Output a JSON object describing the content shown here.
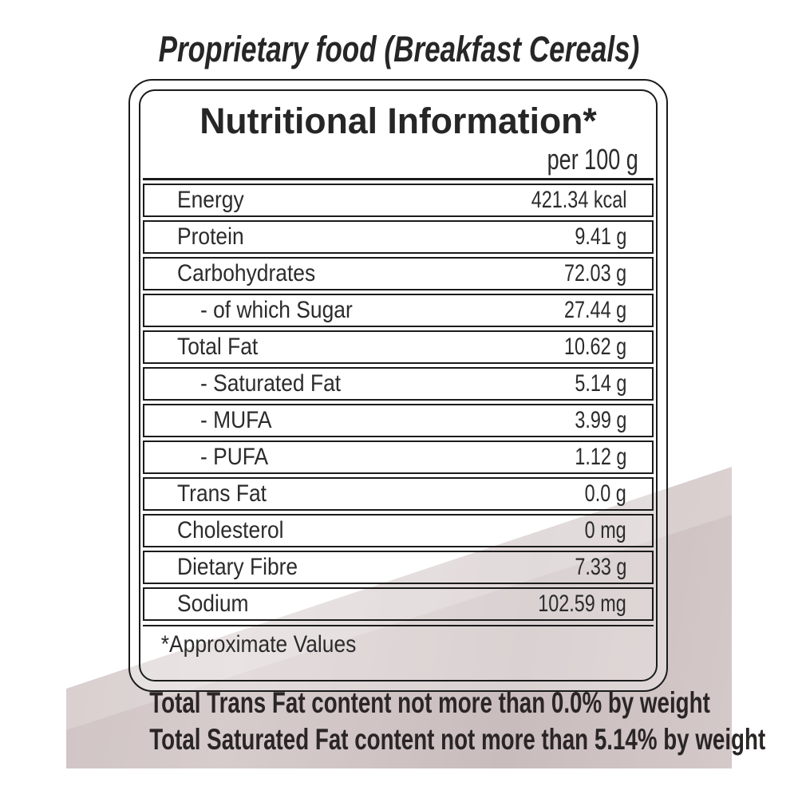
{
  "page": {
    "title": "Proprietary food (Breakfast Cereals)"
  },
  "label_box": {
    "header": "Nutritional Information*",
    "per_quantity": "per 100 g",
    "rows": [
      {
        "name": "Energy",
        "value": "421.34",
        "unit": "kcal",
        "display": "421.34 kcal",
        "indent": false
      },
      {
        "name": "Protein",
        "value": "9.41",
        "unit": "g",
        "display": "9.41 g",
        "indent": false
      },
      {
        "name": "Carbohydrates",
        "value": "72.03",
        "unit": "g",
        "display": "72.03 g",
        "indent": false
      },
      {
        "name": "- of which Sugar",
        "value": "27.44",
        "unit": "g",
        "display": "27.44 g",
        "indent": true
      },
      {
        "name": "Total Fat",
        "value": "10.62",
        "unit": "g",
        "display": "10.62 g",
        "indent": false
      },
      {
        "name": "- Saturated Fat",
        "value": "5.14",
        "unit": "g",
        "display": "5.14 g",
        "indent": true
      },
      {
        "name": "- MUFA",
        "value": "3.99",
        "unit": "g",
        "display": "3.99 g",
        "indent": true
      },
      {
        "name": "- PUFA",
        "value": "1.12",
        "unit": "g",
        "display": "1.12 g",
        "indent": true
      },
      {
        "name": "Trans Fat",
        "value": "0.0",
        "unit": "g",
        "display": "0.0 g",
        "indent": false
      },
      {
        "name": "Cholesterol",
        "value": "0",
        "unit": "mg",
        "display": "0 mg",
        "indent": false
      },
      {
        "name": "Dietary Fibre",
        "value": "7.33",
        "unit": "g",
        "display": "7.33 g",
        "indent": false
      },
      {
        "name": "Sodium",
        "value": "102.59",
        "unit": "mg",
        "display": "102.59 mg",
        "indent": false
      }
    ],
    "footnote": "*Approximate Values"
  },
  "bottom_banner": {
    "line1": "Total Trans Fat content not more than 0.0% by weight",
    "line2": "Total Saturated Fat content not more than 5.14% by weight"
  },
  "colors": {
    "band_dark": "#c9bcbc",
    "band_light": "#d8cdcd",
    "border": "#1b1b1b",
    "text": "#2b2b2b"
  }
}
